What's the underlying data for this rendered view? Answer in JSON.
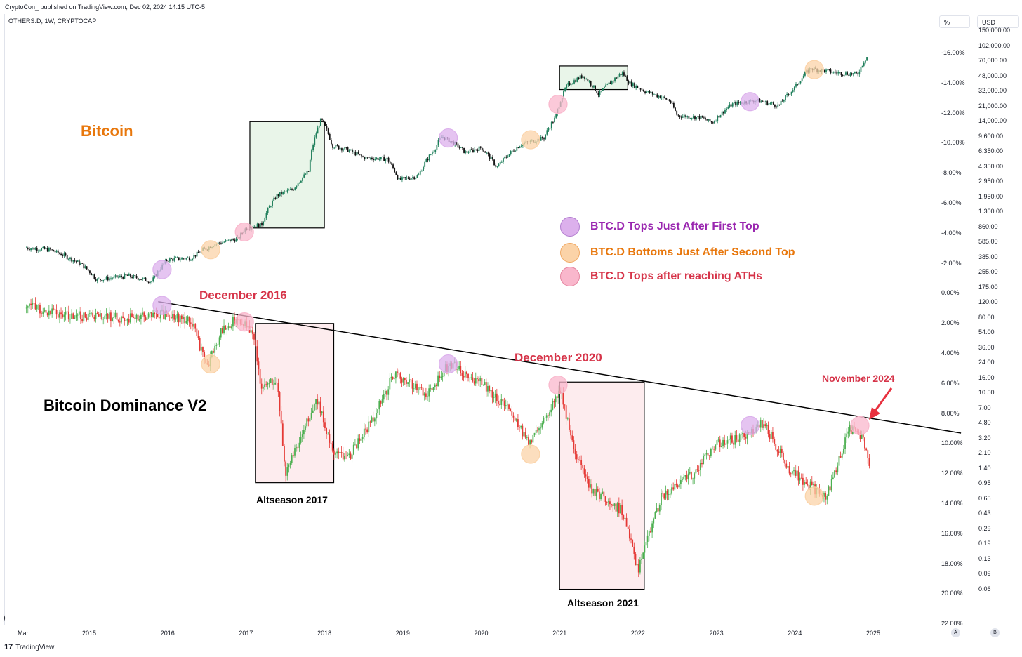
{
  "header": {
    "published": "CryptoCon_ published on TradingView.com, Dec 02, 2024 14:15 UTC-5",
    "symbol": "OTHERS.D, 1W, CRYPTOCAP"
  },
  "axes_headers": {
    "left_scale": "%",
    "right_scale": "USD"
  },
  "footer": {
    "brand": "TradingView",
    "btn_a": "A",
    "btn_b": "B"
  },
  "colors": {
    "up": "#2e9e6a",
    "down": "#d9342b",
    "dom_up": "#4caf50",
    "dom_down": "#e53935",
    "orange_text": "#e8770c",
    "purple": "#9a27b0",
    "red_text": "#d63449",
    "green_box": "#e9f5e9",
    "red_box": "#fdecee"
  },
  "chart_data": [
    {
      "type": "line",
      "title": "Bitcoin",
      "scale": "log",
      "price_axis_ticks": [
        "150,000.00",
        "102,000.00",
        "70,000.00",
        "48,000.00",
        "32,000.00",
        "21,000.00",
        "14,000.00",
        "9,600.00",
        "6,350.00",
        "4,350.00",
        "2,950.00",
        "1,950.00",
        "1,300.00",
        "860.00",
        "585.00",
        "385.00",
        "255.00",
        "175.00",
        "120.00",
        "80.00",
        "54.00",
        "36.00",
        "24.00",
        "16.00",
        "10.50",
        "7.00",
        "4.80",
        "3.20",
        "2.10",
        "1.40",
        "0.95",
        "0.65",
        "0.43",
        "0.29",
        "0.19",
        "0.13",
        "0.09",
        "0.06"
      ],
      "x": [
        2014.2,
        2014.5,
        2014.9,
        2015.1,
        2015.5,
        2015.8,
        2016.0,
        2016.3,
        2016.6,
        2016.9,
        2017.0,
        2017.2,
        2017.4,
        2017.6,
        2017.8,
        2017.96,
        2018.1,
        2018.3,
        2018.5,
        2018.8,
        2018.95,
        2019.2,
        2019.4,
        2019.5,
        2019.8,
        2020.0,
        2020.2,
        2020.5,
        2020.8,
        2020.95,
        2021.1,
        2021.3,
        2021.5,
        2021.8,
        2021.9,
        2022.1,
        2022.4,
        2022.5,
        2022.8,
        2022.95,
        2023.2,
        2023.5,
        2023.8,
        2024.0,
        2024.2,
        2024.5,
        2024.8,
        2024.92
      ],
      "values": [
        590,
        560,
        380,
        250,
        280,
        240,
        430,
        450,
        650,
        750,
        1000,
        1100,
        2400,
        2800,
        4500,
        18000,
        9000,
        8000,
        6500,
        6300,
        3600,
        4000,
        8000,
        11500,
        7500,
        8500,
        5000,
        9200,
        11000,
        19000,
        45000,
        58000,
        35000,
        62000,
        47000,
        38000,
        30000,
        20000,
        19000,
        16500,
        27000,
        30000,
        26000,
        42000,
        70000,
        63000,
        60000,
        96000
      ]
    },
    {
      "type": "line",
      "title": "Bitcoin Dominance V2",
      "ylabel": "%",
      "axis_ticks": [
        "-16.00%",
        "-14.00%",
        "-12.00%",
        "-10.00%",
        "-8.00%",
        "-6.00%",
        "-4.00%",
        "-2.00%",
        "0.00%",
        "2.00%",
        "4.00%",
        "6.00%",
        "8.00%",
        "10.00%",
        "12.00%",
        "14.00%",
        "16.00%",
        "18.00%",
        "20.00%",
        "22.00%"
      ],
      "x": [
        2014.2,
        2014.6,
        2015.0,
        2015.5,
        2015.9,
        2016.3,
        2016.5,
        2016.7,
        2016.9,
        2017.1,
        2017.2,
        2017.4,
        2017.5,
        2017.9,
        2018.1,
        2018.3,
        2018.6,
        2018.9,
        2019.3,
        2019.6,
        2020.0,
        2020.4,
        2020.6,
        2020.9,
        2021.0,
        2021.2,
        2021.4,
        2021.8,
        2022.0,
        2022.3,
        2022.7,
        2023.0,
        2023.4,
        2023.6,
        2023.9,
        2024.1,
        2024.4,
        2024.7,
        2024.85,
        2024.95
      ],
      "values": [
        0.8,
        1.4,
        1.6,
        1.6,
        1.3,
        1.8,
        4.9,
        2.4,
        1.6,
        2.7,
        6.4,
        5.6,
        12.2,
        7.0,
        10.5,
        11.0,
        8.5,
        5.3,
        6.8,
        4.7,
        6.0,
        8.0,
        10.0,
        7.5,
        6.3,
        10.5,
        13.0,
        14.5,
        18.5,
        13.5,
        12.0,
        10.0,
        9.5,
        8.6,
        11.5,
        12.5,
        13.5,
        9.0,
        9.4,
        11.2
      ]
    }
  ],
  "time_axis": {
    "labels": [
      "Mar",
      "2015",
      "2016",
      "2017",
      "2018",
      "2019",
      "2020",
      "2021",
      "2022",
      "2023",
      "2024",
      "2025"
    ]
  },
  "annotations": {
    "bitcoin_label": "Bitcoin",
    "dominance_label": "Bitcoin Dominance V2",
    "dec2016": "December 2016",
    "dec2020": "December 2020",
    "nov2024": "November 2024",
    "alt2017": "Altseason 2017",
    "alt2021": "Altseason 2021"
  },
  "legend": [
    {
      "label": "BTC.D Tops Just After First Top",
      "color": "#dcb0ec",
      "text_color": "#9a27b0"
    },
    {
      "label": "BTC.D Bottoms Just After Second Top",
      "color": "#fbd3a8",
      "text_color": "#e8770c"
    },
    {
      "label": "BTC.D Tops after reaching ATHs",
      "color": "#f9b7cc",
      "text_color": "#d63449"
    }
  ]
}
